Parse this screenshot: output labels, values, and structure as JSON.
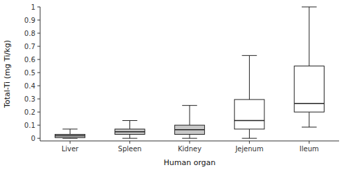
{
  "chart_data": {
    "type": "box",
    "categories": [
      "Liver",
      "Spleen",
      "Kidney",
      "Jejenum",
      "Ileum"
    ],
    "xlabel": "Human organ",
    "ylabel": "Total-Ti (mg Ti/kg)",
    "ylim": [
      -0.02,
      1.0
    ],
    "yticks": [
      0,
      0.1,
      0.2,
      0.3,
      0.4,
      0.5,
      0.6,
      0.7,
      0.8,
      0.9,
      1
    ],
    "boxes": [
      {
        "whislo": 0.0,
        "q1": 0.005,
        "med": 0.02,
        "q3": 0.03,
        "whishi": 0.07
      },
      {
        "whislo": 0.0,
        "q1": 0.03,
        "med": 0.05,
        "q3": 0.07,
        "whishi": 0.135
      },
      {
        "whislo": 0.0,
        "q1": 0.03,
        "med": 0.065,
        "q3": 0.1,
        "whishi": 0.25
      },
      {
        "whislo": 0.0,
        "q1": 0.07,
        "med": 0.135,
        "q3": 0.295,
        "whishi": 0.63
      },
      {
        "whislo": 0.085,
        "q1": 0.2,
        "med": 0.265,
        "q3": 0.55,
        "whishi": 1.0
      }
    ],
    "colors": [
      "#c8c8c8",
      "#c8c8c8",
      "#c8c8c8",
      "#ffffff",
      "#ffffff"
    ],
    "grid": false
  }
}
